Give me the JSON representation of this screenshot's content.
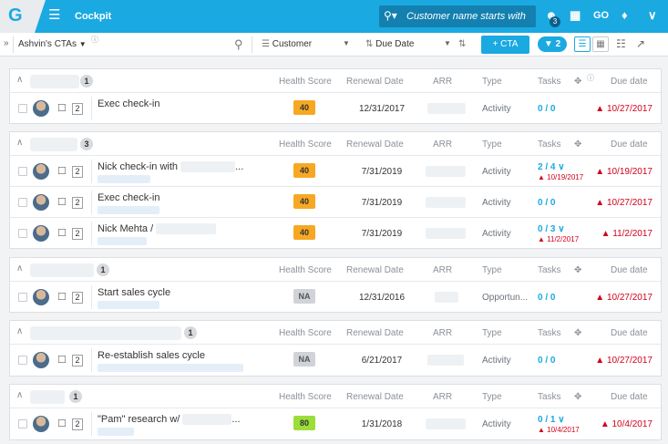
{
  "header": {
    "logo": "G",
    "menu_icon": "hamburger-icon",
    "title": "Cockpit",
    "search_placeholder": "Customer name starts with",
    "user_badge": "3",
    "go_label": "GO"
  },
  "toolbar": {
    "expand_icon": "»",
    "cta_list_label": "Ashvin's CTAs",
    "info_icon": "ⓘ",
    "group_by_label": "Customer",
    "sort_by_label": "Due Date",
    "add_cta_label": "+ CTA",
    "filter_count": "2"
  },
  "columns": {
    "health_score": "Health Score",
    "renewal_date": "Renewal Date",
    "arr": "ARR",
    "type": "Type",
    "tasks": "Tasks",
    "due_date": "Due date"
  },
  "groups": [
    {
      "count": "1",
      "rows": [
        {
          "name": "Exec check-in",
          "num": "2",
          "health": "40",
          "renewal": "12/31/2017",
          "type": "Activity",
          "tasks": "0 / 0",
          "tasks_due": "",
          "due": "10/27/2017"
        }
      ]
    },
    {
      "count": "3",
      "rows": [
        {
          "name": "Nick check-in with",
          "suffix": "...",
          "num": "2",
          "health": "40",
          "renewal": "7/31/2019",
          "type": "Activity",
          "tasks": "2 / 4",
          "tasks_due": "10/19/2017",
          "due": "10/19/2017"
        },
        {
          "name": "Exec check-in",
          "num": "2",
          "health": "40",
          "renewal": "7/31/2019",
          "type": "Activity",
          "tasks": "0 / 0",
          "tasks_due": "",
          "due": "10/27/2017"
        },
        {
          "name": "Nick Mehta /",
          "num": "2",
          "health": "40",
          "renewal": "7/31/2019",
          "type": "Activity",
          "tasks": "0 / 3",
          "tasks_due": "11/2/2017",
          "due": "11/2/2017"
        }
      ]
    },
    {
      "count": "1",
      "rows": [
        {
          "name": "Start sales cycle",
          "num": "2",
          "health": "NA",
          "renewal": "12/31/2016",
          "type": "Opportun...",
          "tasks": "0 / 0",
          "tasks_due": "",
          "due": "10/27/2017"
        }
      ]
    },
    {
      "count": "1",
      "rows": [
        {
          "name": "Re-establish sales cycle",
          "num": "2",
          "health": "NA",
          "renewal": "6/21/2017",
          "type": "Activity",
          "tasks": "0 / 0",
          "tasks_due": "",
          "due": "10/27/2017"
        }
      ]
    },
    {
      "count": "1",
      "rows": [
        {
          "name": "\"Pam\" research w/",
          "suffix": "...",
          "num": "2",
          "health": "80",
          "renewal": "1/31/2018",
          "type": "Activity",
          "tasks": "0 / 1",
          "tasks_due": "10/4/2017",
          "due": "10/4/2017"
        }
      ]
    }
  ],
  "colors": {
    "brand": "#1ba9e1",
    "overdue": "#d0021b",
    "health_orange": "#f7a823",
    "health_green": "#9bde3a"
  }
}
